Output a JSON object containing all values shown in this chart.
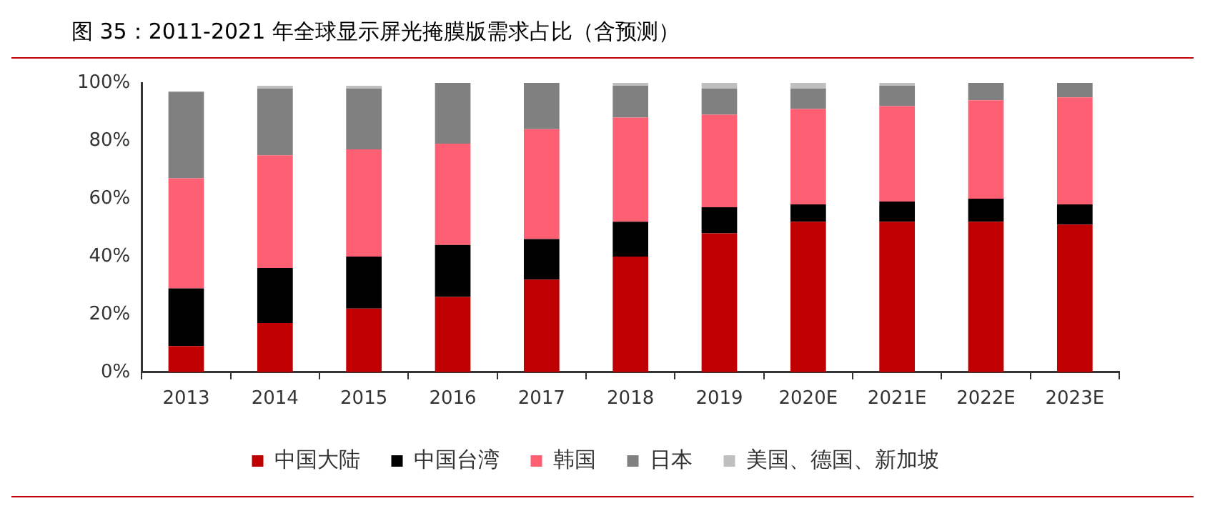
{
  "chart_data": {
    "type": "bar",
    "title": "图 35：2011-2021 年全球显示屏光掩膜版需求占比（含预测）",
    "categories": [
      "2013",
      "2014",
      "2015",
      "2016",
      "2017",
      "2018",
      "2019",
      "2020E",
      "2021E",
      "2022E",
      "2023E"
    ],
    "series": [
      {
        "name": "中国大陆",
        "color": "#c00000",
        "values": [
          9,
          17,
          22,
          26,
          32,
          40,
          48,
          52,
          52,
          52,
          51
        ]
      },
      {
        "name": "中国台湾",
        "color": "#000000",
        "values": [
          20,
          19,
          18,
          18,
          14,
          12,
          9,
          6,
          7,
          8,
          7
        ]
      },
      {
        "name": "韩国",
        "color": "#ff5f73",
        "values": [
          38,
          39,
          37,
          35,
          38,
          36,
          32,
          33,
          33,
          34,
          37
        ]
      },
      {
        "name": "日本",
        "color": "#808080",
        "values": [
          30,
          23,
          21,
          21,
          16,
          11,
          9,
          7,
          7,
          6,
          5
        ]
      },
      {
        "name": "美国、德国、新加坡",
        "color": "#bfbfbf",
        "values": [
          0,
          1,
          1,
          0,
          0,
          1,
          2,
          2,
          1,
          0,
          0
        ]
      }
    ],
    "stacked": true,
    "ylim": [
      0,
      100
    ],
    "yticks": [
      {
        "value": 0,
        "label": "0%"
      },
      {
        "value": 20,
        "label": "20%"
      },
      {
        "value": 40,
        "label": "40%"
      },
      {
        "value": 60,
        "label": "60%"
      },
      {
        "value": 80,
        "label": "80%"
      },
      {
        "value": 100,
        "label": "100%"
      }
    ],
    "grid": false,
    "legend": "bottom"
  }
}
